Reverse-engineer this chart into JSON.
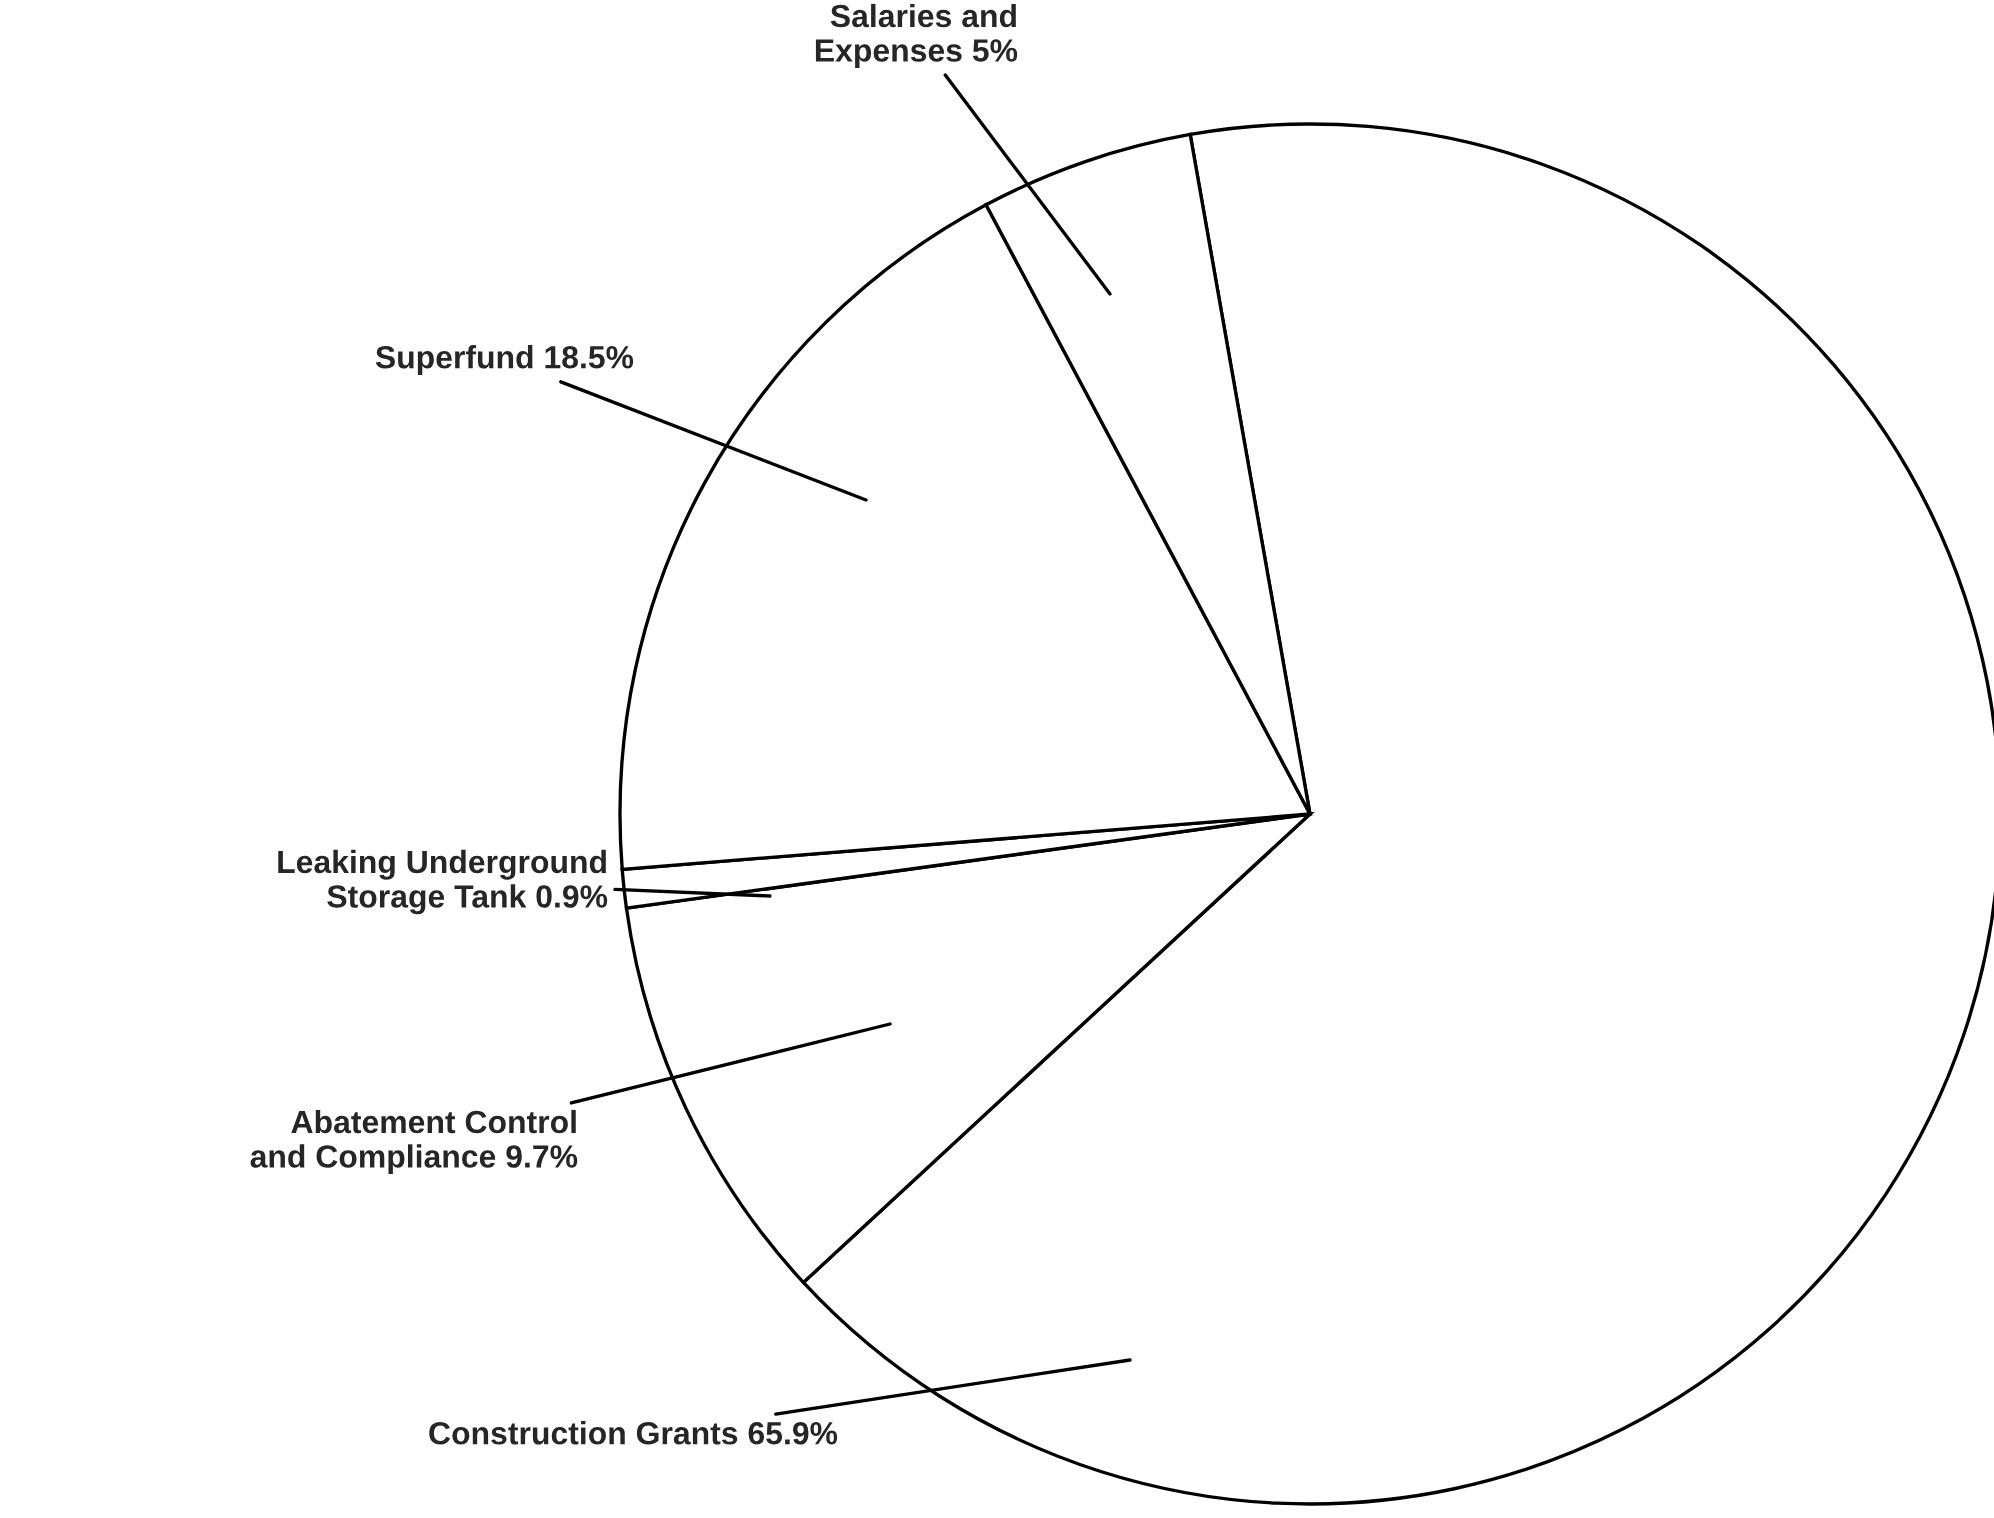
{
  "chart_data": {
    "type": "pie",
    "categories": [
      "Construction Grants",
      "Abatement Control and Compliance",
      "Leaking Underground Storage Tank",
      "Superfund",
      "Salaries and Expenses"
    ],
    "values": [
      65.9,
      9.7,
      0.9,
      18.5,
      5
    ],
    "value_labels": [
      "65.9%",
      "9.7%",
      "0.9%",
      "18.5%",
      "5%"
    ],
    "colors": [
      "#ffffff",
      "#ffffff",
      "#ffffff",
      "#ffffff",
      "#ffffff"
    ]
  }
}
